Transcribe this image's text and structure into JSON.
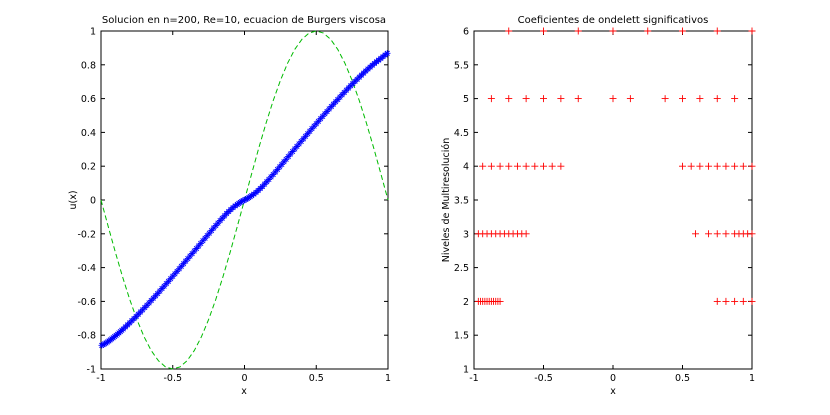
{
  "chart_data": [
    {
      "type": "line",
      "title": "Solucion en n=200, Re=10, ecuacion de Burgers viscosa",
      "xlabel": "x",
      "ylabel": "u(x)",
      "xlim": [
        -1,
        1
      ],
      "ylim": [
        -1,
        1
      ],
      "xticks": [
        "-1",
        "-0.5",
        "0",
        "0.5",
        "1"
      ],
      "yticks": [
        "-1",
        "-0.8",
        "-0.6",
        "-0.4",
        "-0.2",
        "0",
        "0.2",
        "0.4",
        "0.6",
        "0.8",
        "1"
      ],
      "grid": false,
      "legend": "none",
      "series": [
        {
          "style": "blue asterisk markers",
          "color": "#0000ff",
          "x": [
            -0.995,
            -0.985,
            -0.975,
            -0.965,
            -0.955,
            -0.945,
            -0.935,
            -0.925,
            -0.915,
            -0.905,
            -0.895,
            -0.885,
            -0.875,
            -0.865,
            -0.855,
            -0.845,
            -0.83,
            -0.815,
            -0.8,
            -0.785,
            -0.77,
            -0.755,
            -0.74,
            -0.725,
            -0.71,
            -0.695,
            -0.68,
            -0.665,
            -0.65,
            -0.635,
            -0.62,
            -0.605,
            -0.59,
            -0.575,
            -0.56,
            -0.545,
            -0.53,
            -0.515,
            -0.5,
            -0.485,
            -0.47,
            -0.455,
            -0.44,
            -0.425,
            -0.41,
            -0.395,
            -0.38,
            -0.365,
            -0.35,
            -0.335,
            -0.32,
            -0.305,
            -0.29,
            -0.275,
            -0.26,
            -0.245,
            -0.23,
            -0.215,
            -0.2,
            -0.185,
            -0.17,
            -0.155,
            -0.14,
            -0.125,
            -0.11,
            -0.095,
            -0.08,
            -0.065,
            -0.05,
            -0.04,
            -0.03,
            -0.02,
            -0.01,
            0,
            0.01,
            0.02,
            0.03,
            0.04,
            0.05,
            0.065,
            0.08,
            0.095,
            0.11,
            0.125,
            0.14,
            0.155,
            0.17,
            0.185,
            0.2,
            0.215,
            0.23,
            0.245,
            0.26,
            0.275,
            0.29,
            0.305,
            0.32,
            0.335,
            0.35,
            0.365,
            0.38,
            0.395,
            0.41,
            0.425,
            0.44,
            0.455,
            0.47,
            0.485,
            0.5,
            0.515,
            0.53,
            0.545,
            0.56,
            0.575,
            0.59,
            0.605,
            0.62,
            0.635,
            0.65,
            0.665,
            0.68,
            0.695,
            0.71,
            0.725,
            0.74,
            0.755,
            0.77,
            0.785,
            0.8,
            0.815,
            0.83,
            0.845,
            0.86,
            0.875,
            0.89,
            0.905,
            0.92,
            0.935,
            0.95,
            0.965,
            0.98,
            0.995
          ],
          "y": [
            -0.86,
            -0.856,
            -0.851,
            -0.846,
            -0.84,
            -0.834,
            -0.828,
            -0.822,
            -0.815,
            -0.808,
            -0.801,
            -0.794,
            -0.786,
            -0.779,
            -0.771,
            -0.763,
            -0.751,
            -0.739,
            -0.727,
            -0.714,
            -0.702,
            -0.689,
            -0.676,
            -0.663,
            -0.65,
            -0.636,
            -0.623,
            -0.609,
            -0.595,
            -0.581,
            -0.567,
            -0.553,
            -0.539,
            -0.524,
            -0.51,
            -0.495,
            -0.481,
            -0.466,
            -0.451,
            -0.437,
            -0.422,
            -0.407,
            -0.392,
            -0.377,
            -0.362,
            -0.347,
            -0.332,
            -0.317,
            -0.302,
            -0.287,
            -0.272,
            -0.257,
            -0.241,
            -0.226,
            -0.211,
            -0.196,
            -0.181,
            -0.166,
            -0.151,
            -0.137,
            -0.122,
            -0.108,
            -0.094,
            -0.08,
            -0.068,
            -0.056,
            -0.045,
            -0.035,
            -0.026,
            -0.02,
            -0.014,
            -0.009,
            -0.004,
            0,
            0.004,
            0.009,
            0.014,
            0.02,
            0.026,
            0.035,
            0.045,
            0.056,
            0.068,
            0.08,
            0.094,
            0.108,
            0.122,
            0.137,
            0.151,
            0.166,
            0.181,
            0.196,
            0.211,
            0.226,
            0.241,
            0.257,
            0.272,
            0.287,
            0.302,
            0.317,
            0.332,
            0.347,
            0.362,
            0.377,
            0.392,
            0.407,
            0.422,
            0.437,
            0.451,
            0.466,
            0.481,
            0.495,
            0.51,
            0.524,
            0.539,
            0.553,
            0.567,
            0.581,
            0.595,
            0.609,
            0.623,
            0.636,
            0.65,
            0.663,
            0.676,
            0.689,
            0.702,
            0.714,
            0.727,
            0.739,
            0.751,
            0.763,
            0.775,
            0.786,
            0.797,
            0.808,
            0.818,
            0.828,
            0.838,
            0.848,
            0.858,
            0.868
          ]
        },
        {
          "style": "green dashed line",
          "color": "#00bb00",
          "function": "-sin(pi*x)",
          "x": [
            -1,
            -0.95,
            -0.9,
            -0.85,
            -0.8,
            -0.75,
            -0.7,
            -0.65,
            -0.6,
            -0.55,
            -0.5,
            -0.45,
            -0.4,
            -0.35,
            -0.3,
            -0.25,
            -0.2,
            -0.15,
            -0.1,
            -0.05,
            0,
            0.05,
            0.1,
            0.15,
            0.2,
            0.25,
            0.3,
            0.35,
            0.4,
            0.45,
            0.5,
            0.55,
            0.6,
            0.65,
            0.7,
            0.75,
            0.8,
            0.85,
            0.9,
            0.95,
            1
          ],
          "y": [
            0,
            -0.156,
            -0.309,
            -0.454,
            -0.588,
            -0.707,
            -0.809,
            -0.891,
            -0.951,
            -0.988,
            -1,
            -0.988,
            -0.951,
            -0.891,
            -0.809,
            -0.707,
            -0.588,
            -0.454,
            -0.309,
            -0.156,
            0,
            0.156,
            0.309,
            0.454,
            0.588,
            0.707,
            0.809,
            0.891,
            0.951,
            0.988,
            1,
            0.988,
            0.951,
            0.891,
            0.809,
            0.707,
            0.588,
            0.454,
            0.309,
            0.156,
            0
          ]
        }
      ]
    },
    {
      "type": "scatter",
      "title": "Coeficientes de ondelett significativos",
      "xlabel": "x",
      "ylabel": "Niveles de Multiresolución",
      "xlim": [
        -1,
        1
      ],
      "ylim": [
        1,
        6
      ],
      "xticks": [
        "-1",
        "-0.5",
        "0",
        "0.5",
        "1"
      ],
      "yticks": [
        "1",
        "1.5",
        "2",
        "2.5",
        "3",
        "3.5",
        "4",
        "4.5",
        "5",
        "5.5",
        "6"
      ],
      "grid": false,
      "legend": "none",
      "series": [
        {
          "style": "red plus markers",
          "color": "#ff0000",
          "points": [
            [
              -0.75,
              6
            ],
            [
              -0.5,
              6
            ],
            [
              -0.25,
              6
            ],
            [
              0,
              6
            ],
            [
              0.25,
              6
            ],
            [
              0.5,
              6
            ],
            [
              0.75,
              6
            ],
            [
              1,
              6
            ],
            [
              -0.875,
              5
            ],
            [
              -0.75,
              5
            ],
            [
              -0.625,
              5
            ],
            [
              -0.5,
              5
            ],
            [
              -0.375,
              5
            ],
            [
              -0.25,
              5
            ],
            [
              0,
              5
            ],
            [
              0.125,
              5
            ],
            [
              0.375,
              5
            ],
            [
              0.5,
              5
            ],
            [
              0.625,
              5
            ],
            [
              0.75,
              5
            ],
            [
              0.875,
              5
            ],
            [
              -0.9375,
              4
            ],
            [
              -0.875,
              4
            ],
            [
              -0.8125,
              4
            ],
            [
              -0.75,
              4
            ],
            [
              -0.6875,
              4
            ],
            [
              -0.625,
              4
            ],
            [
              -0.5625,
              4
            ],
            [
              -0.5,
              4
            ],
            [
              -0.4375,
              4
            ],
            [
              -0.375,
              4
            ],
            [
              0.5,
              4
            ],
            [
              0.5625,
              4
            ],
            [
              0.625,
              4
            ],
            [
              0.6875,
              4
            ],
            [
              0.75,
              4
            ],
            [
              0.8125,
              4
            ],
            [
              0.875,
              4
            ],
            [
              0.9375,
              4
            ],
            [
              1,
              4
            ],
            [
              -0.96875,
              3
            ],
            [
              -0.9375,
              3
            ],
            [
              -0.90625,
              3
            ],
            [
              -0.875,
              3
            ],
            [
              -0.84375,
              3
            ],
            [
              -0.8125,
              3
            ],
            [
              -0.78125,
              3
            ],
            [
              -0.75,
              3
            ],
            [
              -0.71875,
              3
            ],
            [
              -0.6875,
              3
            ],
            [
              -0.65625,
              3
            ],
            [
              -0.625,
              3
            ],
            [
              0.59375,
              3
            ],
            [
              0.6875,
              3
            ],
            [
              0.75,
              3
            ],
            [
              0.8125,
              3
            ],
            [
              0.875,
              3
            ],
            [
              0.90625,
              3
            ],
            [
              0.9375,
              3
            ],
            [
              0.96875,
              3
            ],
            [
              1,
              3
            ],
            [
              -0.96875,
              2
            ],
            [
              -0.953125,
              2
            ],
            [
              -0.9375,
              2
            ],
            [
              -0.921875,
              2
            ],
            [
              -0.90625,
              2
            ],
            [
              -0.890625,
              2
            ],
            [
              -0.875,
              2
            ],
            [
              -0.859375,
              2
            ],
            [
              -0.84375,
              2
            ],
            [
              -0.828125,
              2
            ],
            [
              -0.8125,
              2
            ],
            [
              0.75,
              2
            ],
            [
              0.8125,
              2
            ],
            [
              0.875,
              2
            ],
            [
              0.9375,
              2
            ],
            [
              1,
              2
            ]
          ]
        }
      ]
    }
  ]
}
